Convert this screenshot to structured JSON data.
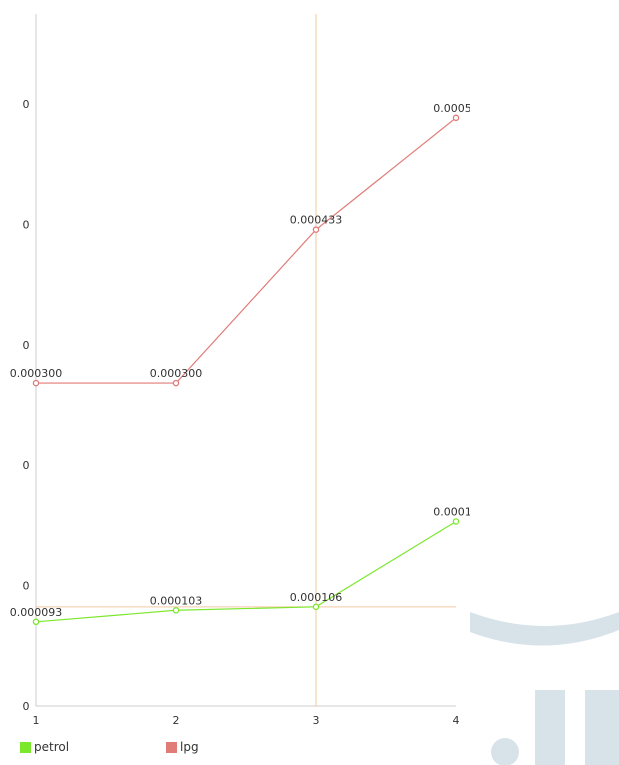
{
  "chart_data": {
    "type": "line",
    "x": [
      1,
      2,
      3,
      4
    ],
    "xticks": [
      "1",
      "2",
      "3",
      "4"
    ],
    "yticks": [
      "0",
      "0",
      "0",
      "0",
      "0",
      "0"
    ],
    "grid": false,
    "legend_position": "bottom-left",
    "crosshair": {
      "x": 3,
      "y": 0.000106
    },
    "series": [
      {
        "name": "petrol",
        "color": "#7be82c",
        "values": [
          9.3e-05,
          0.000103,
          0.000106,
          0.00018
        ],
        "labels": [
          "0.000093",
          "0.000103",
          "0.000106",
          "0.00018"
        ]
      },
      {
        "name": "lpg",
        "color": "#e07b78",
        "values": [
          0.0003,
          0.0003,
          0.000433,
          0.00053
        ],
        "labels": [
          "0.000300",
          "0.000300",
          "0.000433",
          "0.00053"
        ]
      }
    ],
    "ylim": [
      2e-05,
      0.00062
    ]
  }
}
